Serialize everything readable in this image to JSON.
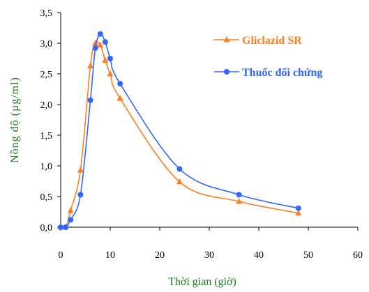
{
  "chart_data": {
    "type": "line",
    "xlabel": "Thời gian (giờ)",
    "ylabel": "Nồng độ (µg/ml)",
    "xlim": [
      0,
      60
    ],
    "ylim": [
      0,
      3.5
    ],
    "x_ticks": [
      "0",
      "10",
      "20",
      "30",
      "40",
      "50",
      "60"
    ],
    "y_ticks": [
      "0,0",
      "0,5",
      "1,0",
      "1,5",
      "2,0",
      "2,5",
      "3,0",
      "3,5"
    ],
    "grid": false,
    "legend_position": "top-right",
    "series": [
      {
        "name": "Gliclazid SR",
        "color": "#ff7f1e",
        "marker": "triangle",
        "x": [
          0,
          1,
          2,
          4,
          6,
          7,
          8,
          9,
          10,
          12,
          24,
          36,
          48
        ],
        "y": [
          0.0,
          0.0,
          0.27,
          0.93,
          2.63,
          3.0,
          2.97,
          2.72,
          2.5,
          2.1,
          0.74,
          0.42,
          0.23
        ]
      },
      {
        "name": "Thuốc đối chứng",
        "color": "#3366ff",
        "marker": "circle",
        "x": [
          0,
          1,
          2,
          4,
          6,
          7,
          8,
          9,
          10,
          12,
          24,
          36,
          48
        ],
        "y": [
          0.0,
          0.0,
          0.12,
          0.53,
          2.07,
          2.92,
          3.15,
          3.02,
          2.75,
          2.34,
          0.95,
          0.53,
          0.31
        ]
      }
    ]
  }
}
